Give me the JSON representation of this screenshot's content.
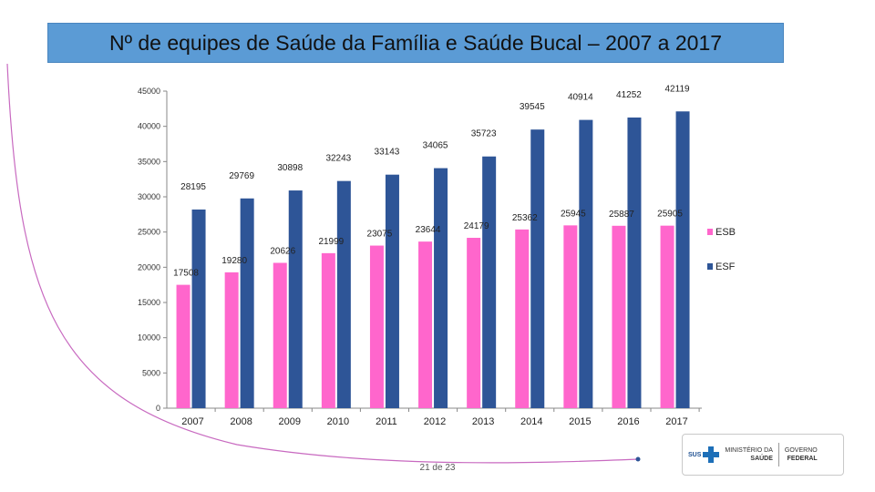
{
  "slide": {
    "title": "Nº de equipes de Saúde da Família e Saúde Bucal – 2007 a 2017",
    "page_number": "21 de 23"
  },
  "logo": {
    "sus": "SUS",
    "ministry_line1": "MINISTÉRIO DA",
    "ministry_line2": "SAÚDE",
    "gov_line1": "GOVERNO",
    "gov_line2": "FEDERAL"
  },
  "colors": {
    "esb": "#ff66cc",
    "esf": "#2e5597",
    "banner": "#5b9bd5",
    "curve": "#c86ac0"
  },
  "chart_data": {
    "type": "bar",
    "title": "",
    "xlabel": "",
    "ylabel": "",
    "ylim": [
      0,
      45000
    ],
    "yticks": [
      0,
      5000,
      10000,
      15000,
      20000,
      25000,
      30000,
      35000,
      40000,
      45000
    ],
    "ytick_labels": [
      "0",
      "5000",
      "10000",
      "15000",
      "20000",
      "25000",
      "30000",
      "35000",
      "40000",
      "45000"
    ],
    "categories": [
      "2007",
      "2008",
      "2009",
      "2010",
      "2011",
      "2012",
      "2013",
      "2014",
      "2015",
      "2016",
      "2017"
    ],
    "legend_position": "right",
    "series": [
      {
        "name": "ESB",
        "color": "#ff66cc",
        "values": [
          17508,
          19280,
          20626,
          21999,
          23075,
          23644,
          24179,
          25362,
          25945,
          25887,
          25905
        ]
      },
      {
        "name": "ESF",
        "color": "#2e5597",
        "values": [
          28195,
          29769,
          30898,
          32243,
          33143,
          34065,
          35723,
          39545,
          40914,
          41252,
          42119
        ]
      }
    ]
  }
}
